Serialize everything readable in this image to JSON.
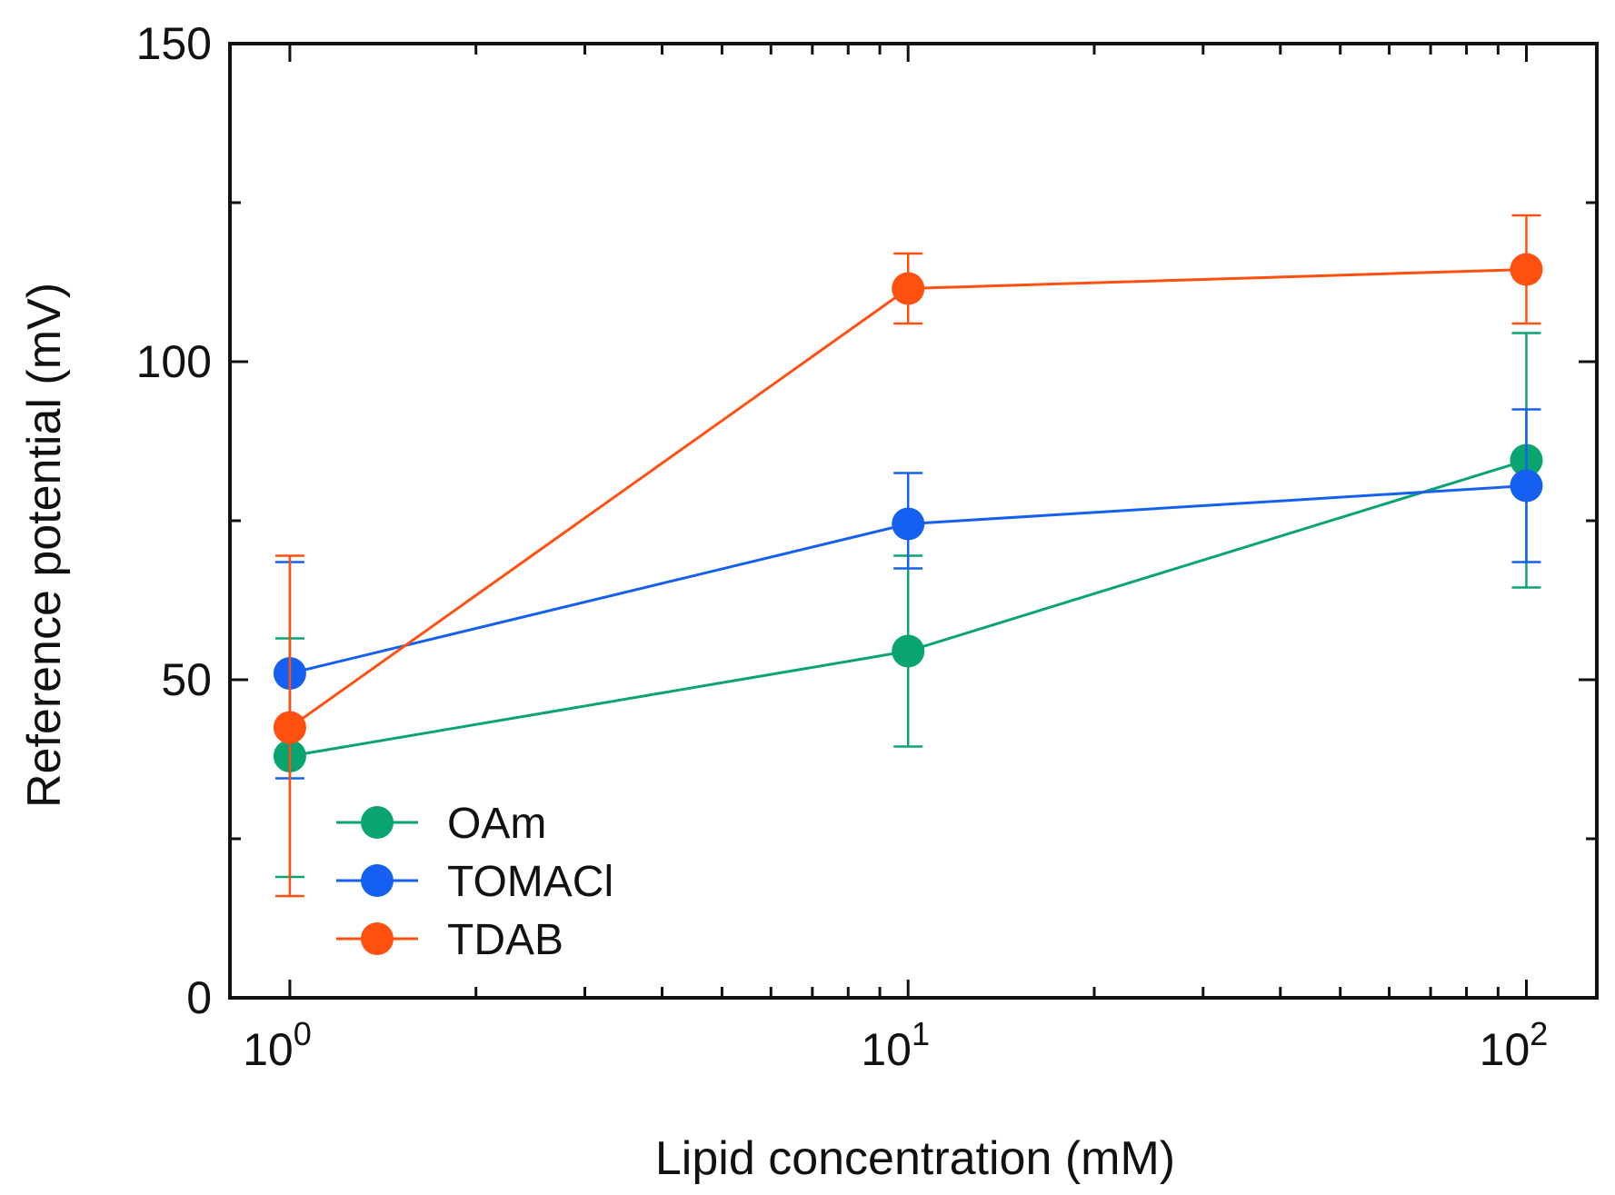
{
  "chart_data": {
    "type": "line",
    "title": "",
    "xlabel": "Lipid concentration (mM)",
    "ylabel": "Reference potential (mV)",
    "xscale": "log",
    "xlim": [
      0.8,
      130
    ],
    "ylim": [
      0,
      150
    ],
    "x": [
      1,
      10,
      100
    ],
    "x_tick_labels": [
      {
        "value": 1,
        "base": "10",
        "exp": "0"
      },
      {
        "value": 10,
        "base": "10",
        "exp": "1"
      },
      {
        "value": 100,
        "base": "10",
        "exp": "2"
      }
    ],
    "x_minor_ticks": [
      2,
      3,
      4,
      5,
      6,
      7,
      8,
      9,
      20,
      30,
      40,
      50,
      60,
      70,
      80,
      90
    ],
    "y_ticks": [
      0,
      50,
      100,
      150
    ],
    "y_tick_labels": [
      "0",
      "50",
      "100",
      "150"
    ],
    "y_minor_ticks": [
      25,
      75,
      125
    ],
    "legend_position": "lower-left",
    "series": [
      {
        "name": "OAm",
        "color": "#0aa56e",
        "values": [
          38,
          54.5,
          84.5
        ],
        "err_low": [
          19,
          39.5,
          64.5
        ],
        "err_high": [
          56.5,
          69.5,
          104.5
        ]
      },
      {
        "name": "TOMACl",
        "color": "#1560f0",
        "values": [
          51,
          74.5,
          80.5
        ],
        "err_low": [
          34.5,
          67.5,
          68.5
        ],
        "err_high": [
          68.5,
          82.5,
          92.5
        ]
      },
      {
        "name": "TDAB",
        "color": "#ff5010",
        "values": [
          42.5,
          111.5,
          114.5
        ],
        "err_low": [
          16,
          106,
          106
        ],
        "err_high": [
          69.5,
          117,
          123
        ]
      }
    ],
    "legend_labels": [
      "OAm",
      "TOMACl",
      "TDAB"
    ]
  }
}
